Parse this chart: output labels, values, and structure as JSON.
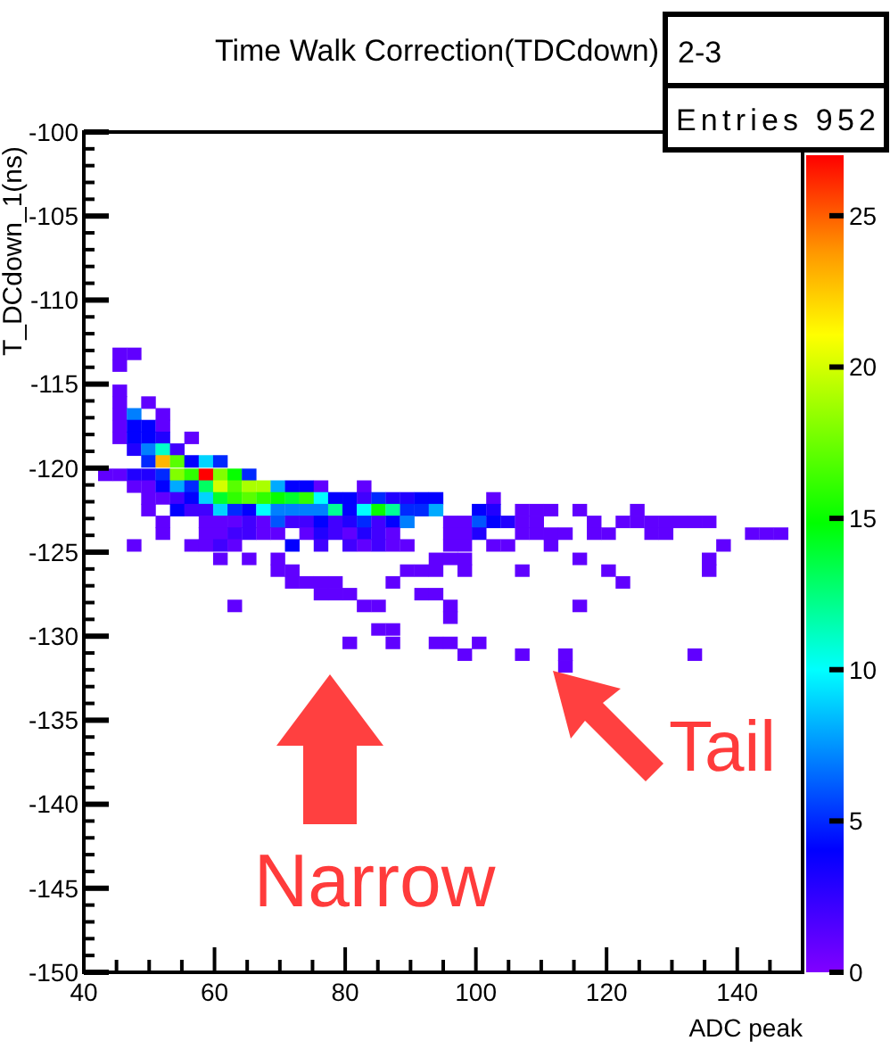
{
  "chart_data": {
    "type": "scatter",
    "marker": "square",
    "title": "Time Walk Correction(TDCdown)",
    "xlabel": "ADC peak",
    "ylabel": "T_DCdown_1(ns)",
    "annotations": [
      "2-3",
      "Entries 952",
      "Narrow",
      "Tail"
    ],
    "xlim": [
      40,
      150
    ],
    "xticks": [
      40,
      {
        "value": 45,
        "label": null
      },
      {
        "value": 50,
        "label": null
      },
      {
        "value": 55,
        "label": null
      },
      60,
      {
        "value": 65,
        "label": null
      },
      {
        "value": 70,
        "label": null
      },
      {
        "value": 75,
        "label": null
      },
      80,
      {
        "value": 85,
        "label": null
      },
      {
        "value": 90,
        "label": null
      },
      {
        "value": 95,
        "label": null
      },
      100,
      {
        "value": 105,
        "label": null
      },
      {
        "value": 110,
        "label": null
      },
      {
        "value": 115,
        "label": null
      },
      120,
      {
        "value": 125,
        "label": null
      },
      {
        "value": 130,
        "label": null
      },
      {
        "value": 135,
        "label": null
      },
      140,
      {
        "value": 145,
        "label": null
      },
      {
        "value": 150,
        "label": null
      }
    ],
    "ylim": [
      -150,
      -100
    ],
    "yticks": [
      -150,
      -145,
      -140,
      -135,
      -130,
      -125,
      -120,
      -115,
      -110,
      -105,
      -100
    ],
    "clim": [
      0,
      27
    ],
    "cticks": [
      0,
      5,
      10,
      15,
      20,
      25
    ],
    "x": [
      45.5,
      47.7,
      45.5,
      45.5,
      45.5,
      49.9,
      45.5,
      47.7,
      52.1,
      45.5,
      47.7,
      49.9,
      52.1,
      45.5,
      47.7,
      49.9,
      52.1,
      56.5,
      47.7,
      49.9,
      52.1,
      54.3,
      49.9,
      52.1,
      54.3,
      56.5,
      58.7,
      60.9,
      43.3,
      45.5,
      47.7,
      49.9,
      52.1,
      54.3,
      56.5,
      58.7,
      60.9,
      63.1,
      65.3,
      47.7,
      49.9,
      52.1,
      54.3,
      56.5,
      58.7,
      60.9,
      63.1,
      65.3,
      67.5,
      69.7,
      71.9,
      74.1,
      76.3,
      82.9,
      49.9,
      52.1,
      54.3,
      56.5,
      58.7,
      60.9,
      63.1,
      65.3,
      67.5,
      69.7,
      71.9,
      74.1,
      76.3,
      78.5,
      80.7,
      82.9,
      85.1,
      87.3,
      89.5,
      91.7,
      93.9,
      102.7,
      49.9,
      54.3,
      56.5,
      58.7,
      60.9,
      63.1,
      65.3,
      67.5,
      69.7,
      71.9,
      74.1,
      76.3,
      78.5,
      80.7,
      82.9,
      85.1,
      87.3,
      89.5,
      91.7,
      93.9,
      100.5,
      102.7,
      107.1,
      109.3,
      111.5,
      115.9,
      124.7,
      52.1,
      58.7,
      60.9,
      63.1,
      65.3,
      67.5,
      69.7,
      71.9,
      74.1,
      76.3,
      78.5,
      80.7,
      82.9,
      85.1,
      87.3,
      89.5,
      96.1,
      98.3,
      100.5,
      102.7,
      104.9,
      107.1,
      109.3,
      118.1,
      122.5,
      124.7,
      126.9,
      129.1,
      131.3,
      133.5,
      135.7,
      52.1,
      58.7,
      60.9,
      63.1,
      65.3,
      67.5,
      69.7,
      74.1,
      76.3,
      78.5,
      80.7,
      82.9,
      85.1,
      87.3,
      96.1,
      98.3,
      100.5,
      107.1,
      109.3,
      111.5,
      113.7,
      118.1,
      120.3,
      126.9,
      129.1,
      142.3,
      144.5,
      146.7,
      47.7,
      56.5,
      58.7,
      60.9,
      63.1,
      71.9,
      76.3,
      80.7,
      82.9,
      85.1,
      87.3,
      89.5,
      96.1,
      98.3,
      102.7,
      104.9,
      111.5,
      137.9,
      60.9,
      65.3,
      69.7,
      93.9,
      96.1,
      98.3,
      115.9,
      135.7,
      69.7,
      71.9,
      89.5,
      91.7,
      93.9,
      98.3,
      107.1,
      120.3,
      135.7,
      71.9,
      74.1,
      76.3,
      78.5,
      87.3,
      122.5,
      76.3,
      78.5,
      80.7,
      91.7,
      93.9,
      63.1,
      82.9,
      85.1,
      96.1,
      115.9,
      96.1,
      85.1,
      87.3,
      80.7,
      87.3,
      93.9,
      96.1,
      100.5,
      98.3,
      107.1,
      113.7,
      133.5,
      113.7
    ],
    "values": [
      -113.2,
      -113.2,
      -113.9,
      -115.4,
      -116.1,
      -116.1,
      -116.8,
      -116.8,
      -116.8,
      -117.5,
      -117.5,
      -117.5,
      -117.5,
      -118.2,
      -118.2,
      -118.2,
      -118.2,
      -118.2,
      -118.9,
      -118.9,
      -118.9,
      -118.9,
      -119.6,
      -119.6,
      -119.6,
      -119.6,
      -119.6,
      -119.6,
      -120.4,
      -120.4,
      -120.4,
      -120.4,
      -120.4,
      -120.4,
      -120.4,
      -120.4,
      -120.4,
      -120.4,
      -120.4,
      -121.1,
      -121.1,
      -121.1,
      -121.1,
      -121.1,
      -121.1,
      -121.1,
      -121.1,
      -121.1,
      -121.1,
      -121.1,
      -121.1,
      -121.1,
      -121.1,
      -121.1,
      -121.8,
      -121.8,
      -121.8,
      -121.8,
      -121.8,
      -121.8,
      -121.8,
      -121.8,
      -121.8,
      -121.8,
      -121.8,
      -121.8,
      -121.8,
      -121.8,
      -121.8,
      -121.8,
      -121.8,
      -121.8,
      -121.8,
      -121.8,
      -121.8,
      -121.8,
      -122.5,
      -122.5,
      -122.5,
      -122.5,
      -122.5,
      -122.5,
      -122.5,
      -122.5,
      -122.5,
      -122.5,
      -122.5,
      -122.5,
      -122.5,
      -122.5,
      -122.5,
      -122.5,
      -122.5,
      -122.5,
      -122.5,
      -122.5,
      -122.5,
      -122.5,
      -122.5,
      -122.5,
      -122.5,
      -122.5,
      -122.5,
      -123.2,
      -123.2,
      -123.2,
      -123.2,
      -123.2,
      -123.2,
      -123.2,
      -123.2,
      -123.2,
      -123.2,
      -123.2,
      -123.2,
      -123.2,
      -123.2,
      -123.2,
      -123.2,
      -123.2,
      -123.2,
      -123.2,
      -123.2,
      -123.2,
      -123.2,
      -123.2,
      -123.2,
      -123.2,
      -123.2,
      -123.2,
      -123.2,
      -123.2,
      -123.2,
      -123.2,
      -123.9,
      -123.9,
      -123.9,
      -123.9,
      -123.9,
      -123.9,
      -123.9,
      -123.9,
      -123.9,
      -123.9,
      -123.9,
      -123.9,
      -123.9,
      -123.9,
      -123.9,
      -123.9,
      -123.9,
      -123.9,
      -123.9,
      -123.9,
      -123.9,
      -123.9,
      -123.9,
      -123.9,
      -123.9,
      -123.9,
      -123.9,
      -123.9,
      -124.6,
      -124.6,
      -124.6,
      -124.6,
      -124.6,
      -124.6,
      -124.6,
      -124.6,
      -124.6,
      -124.6,
      -124.6,
      -124.6,
      -124.6,
      -124.6,
      -124.6,
      -124.6,
      -124.6,
      -124.6,
      -125.4,
      -125.4,
      -125.4,
      -125.4,
      -125.4,
      -125.4,
      -125.4,
      -125.4,
      -126.1,
      -126.1,
      -126.1,
      -126.1,
      -126.1,
      -126.1,
      -126.1,
      -126.1,
      -126.1,
      -126.8,
      -126.8,
      -126.8,
      -126.8,
      -126.8,
      -126.8,
      -127.5,
      -127.5,
      -127.5,
      -127.5,
      -127.5,
      -128.2,
      -128.2,
      -128.2,
      -128.2,
      -128.2,
      -128.9,
      -129.6,
      -129.6,
      -130.4,
      -130.4,
      -130.4,
      -130.4,
      -130.4,
      -131.1,
      -131.1,
      -131.1,
      -131.1,
      -131.8
    ],
    "cvalues": [
      1,
      1,
      1,
      1,
      1,
      1,
      1,
      7,
      1,
      1,
      4,
      4,
      1,
      1,
      4,
      4,
      3,
      1,
      3,
      7,
      11,
      2,
      5,
      23,
      17,
      4,
      9,
      5,
      1,
      1,
      3,
      3,
      5,
      18,
      16,
      27,
      18,
      15,
      5,
      1,
      1,
      4,
      8,
      5,
      13,
      20,
      17,
      19,
      19,
      8,
      4,
      4,
      1,
      1,
      1,
      1,
      2,
      4,
      9,
      14,
      16,
      17,
      16,
      15,
      14,
      16,
      10,
      4,
      4,
      2,
      5,
      3,
      3,
      4,
      4,
      1,
      1,
      4,
      2,
      2,
      9,
      5,
      4,
      10,
      7,
      7,
      7,
      7,
      12,
      4,
      10,
      15,
      12,
      5,
      5,
      8,
      4,
      3,
      1,
      1,
      1,
      1,
      1,
      1,
      1,
      1,
      1,
      2,
      1,
      6,
      2,
      2,
      4,
      2,
      3,
      5,
      2,
      4,
      7,
      1,
      1,
      6,
      4,
      3,
      1,
      1,
      1,
      1,
      1,
      1,
      1,
      1,
      1,
      1,
      1,
      1,
      1,
      2,
      2,
      1,
      1,
      1,
      3,
      2,
      1,
      3,
      2,
      1,
      1,
      1,
      3,
      1,
      1,
      1,
      1,
      1,
      1,
      1,
      1,
      1,
      1,
      1,
      1,
      1,
      1,
      2,
      1,
      4,
      2,
      2,
      1,
      2,
      1,
      1,
      1,
      1,
      1,
      1,
      1,
      1,
      1,
      1,
      1,
      1,
      1,
      1,
      1,
      1,
      1,
      1,
      1,
      1,
      1,
      1,
      1,
      1,
      1,
      1,
      1,
      1,
      1,
      1,
      1,
      1,
      1,
      1,
      1,
      1,
      1,
      1,
      1,
      1,
      1,
      1,
      1,
      1,
      1,
      1,
      1,
      1,
      1,
      1,
      1,
      1,
      1,
      1
    ]
  }
}
